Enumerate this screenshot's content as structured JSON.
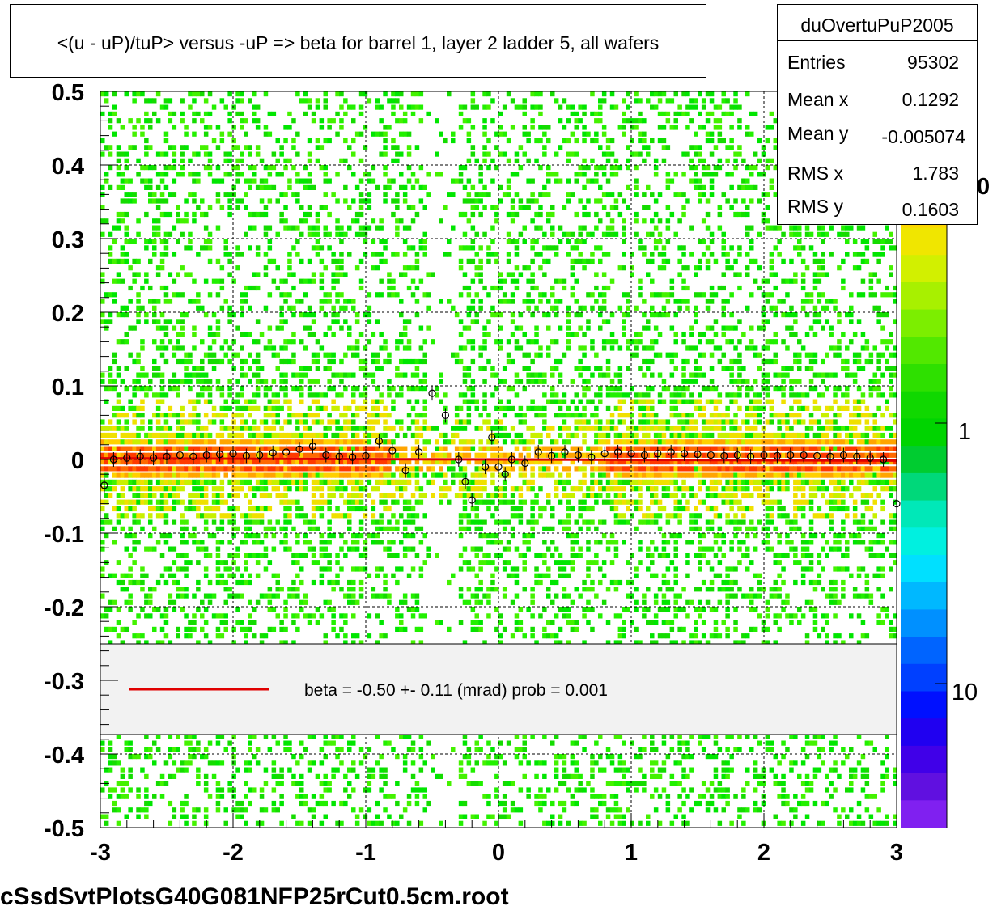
{
  "title": "<(u - uP)/tuP> versus  -uP => beta for barrel 1, layer 2 ladder 5, all wafers",
  "stats": {
    "name": "duOvertuPuP2005",
    "rows": [
      {
        "label": "Entries",
        "value": "95302"
      },
      {
        "label": "Mean x",
        "value": "0.1292"
      },
      {
        "label": "Mean y",
        "value": "-0.005074"
      },
      {
        "label": "RMS x",
        "value": "1.783"
      },
      {
        "label": "RMS y",
        "value": "0.1603"
      }
    ]
  },
  "legend": {
    "text": "beta =   -0.50 +-  0.11 (mrad) prob = 0.001",
    "line_color": "#e00000"
  },
  "footer": "cSsdSvtPlotsG40G081NFP25rCut0.5cm.root",
  "palette_labels": [
    "1",
    "10"
  ],
  "palette_partial_label": "0",
  "chart_data": {
    "type": "heatmap",
    "title": "<(u - uP)/tuP> versus  -uP => beta for barrel 1, layer 2 ladder 5, all wafers",
    "xlabel": "",
    "ylabel": "",
    "xlim": [
      -3,
      3
    ],
    "ylim": [
      -0.5,
      0.5
    ],
    "x_ticks": [
      "-3",
      "-2",
      "-1",
      "0",
      "1",
      "2",
      "3"
    ],
    "y_ticks": [
      "0.5",
      "0.4",
      "0.3",
      "0.2",
      "0.1",
      "0",
      "-0.1",
      "-0.2",
      "-0.3",
      "-0.4",
      "-0.5"
    ],
    "grid": true,
    "z_scale": "log",
    "colors": {
      "low": "#00e600",
      "mid": "#ffd700",
      "high": "#ff2000",
      "fit_line": "#e00000"
    },
    "fit": {
      "slope_mrad": -0.5,
      "error_mrad": 0.11,
      "prob": 0.001,
      "intercept": 0.0
    },
    "profile_points": [
      {
        "x": -2.97,
        "y": -0.035
      },
      {
        "x": -2.9,
        "y": 0.0
      },
      {
        "x": -2.8,
        "y": 0.002
      },
      {
        "x": -2.7,
        "y": 0.004
      },
      {
        "x": -2.6,
        "y": 0.002
      },
      {
        "x": -2.5,
        "y": 0.004
      },
      {
        "x": -2.4,
        "y": 0.006
      },
      {
        "x": -2.3,
        "y": 0.004
      },
      {
        "x": -2.2,
        "y": 0.006
      },
      {
        "x": -2.1,
        "y": 0.007
      },
      {
        "x": -2.0,
        "y": 0.008
      },
      {
        "x": -1.9,
        "y": 0.005
      },
      {
        "x": -1.8,
        "y": 0.006
      },
      {
        "x": -1.7,
        "y": 0.009
      },
      {
        "x": -1.6,
        "y": 0.01
      },
      {
        "x": -1.5,
        "y": 0.014
      },
      {
        "x": -1.4,
        "y": 0.018
      },
      {
        "x": -1.3,
        "y": 0.006
      },
      {
        "x": -1.2,
        "y": 0.004
      },
      {
        "x": -1.1,
        "y": 0.003
      },
      {
        "x": -1.0,
        "y": 0.005
      },
      {
        "x": -0.9,
        "y": 0.025
      },
      {
        "x": -0.8,
        "y": 0.012
      },
      {
        "x": -0.7,
        "y": -0.015
      },
      {
        "x": -0.6,
        "y": 0.01
      },
      {
        "x": -0.5,
        "y": 0.09
      },
      {
        "x": -0.4,
        "y": 0.06
      },
      {
        "x": -0.3,
        "y": 0.0
      },
      {
        "x": -0.25,
        "y": -0.03
      },
      {
        "x": -0.2,
        "y": -0.055
      },
      {
        "x": -0.1,
        "y": -0.01
      },
      {
        "x": -0.05,
        "y": 0.03
      },
      {
        "x": 0.0,
        "y": -0.01
      },
      {
        "x": 0.05,
        "y": -0.02
      },
      {
        "x": 0.1,
        "y": 0.0
      },
      {
        "x": 0.2,
        "y": -0.005
      },
      {
        "x": 0.3,
        "y": 0.01
      },
      {
        "x": 0.4,
        "y": 0.005
      },
      {
        "x": 0.5,
        "y": 0.01
      },
      {
        "x": 0.6,
        "y": 0.006
      },
      {
        "x": 0.7,
        "y": 0.003
      },
      {
        "x": 0.8,
        "y": 0.008
      },
      {
        "x": 0.9,
        "y": 0.01
      },
      {
        "x": 1.0,
        "y": 0.008
      },
      {
        "x": 1.1,
        "y": 0.006
      },
      {
        "x": 1.2,
        "y": 0.008
      },
      {
        "x": 1.3,
        "y": 0.01
      },
      {
        "x": 1.4,
        "y": 0.008
      },
      {
        "x": 1.5,
        "y": 0.007
      },
      {
        "x": 1.6,
        "y": 0.006
      },
      {
        "x": 1.7,
        "y": 0.005
      },
      {
        "x": 1.8,
        "y": 0.006
      },
      {
        "x": 1.9,
        "y": 0.004
      },
      {
        "x": 2.0,
        "y": 0.006
      },
      {
        "x": 2.1,
        "y": 0.005
      },
      {
        "x": 2.2,
        "y": 0.006
      },
      {
        "x": 2.3,
        "y": 0.006
      },
      {
        "x": 2.4,
        "y": 0.005
      },
      {
        "x": 2.5,
        "y": 0.004
      },
      {
        "x": 2.6,
        "y": 0.006
      },
      {
        "x": 2.7,
        "y": 0.004
      },
      {
        "x": 2.8,
        "y": 0.002
      },
      {
        "x": 2.9,
        "y": 0.0
      },
      {
        "x": 3.0,
        "y": -0.06
      }
    ]
  }
}
